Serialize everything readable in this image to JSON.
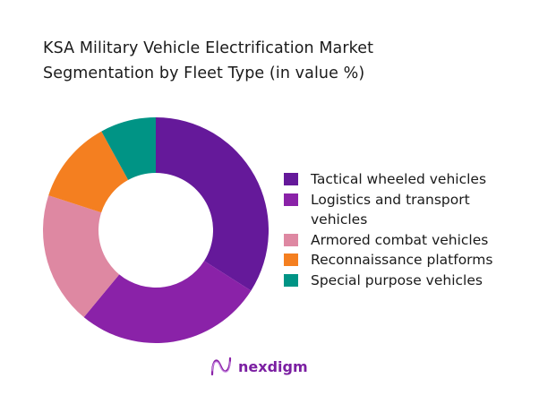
{
  "title": {
    "line1": "KSA Military Vehicle Electrification Market",
    "line2": "Segmentation by Fleet Type (in value %)"
  },
  "chart_data": {
    "type": "pie",
    "subtype": "donut",
    "title": "KSA Military Vehicle Electrification Market Segmentation by Fleet Type (in value %)",
    "categories": [
      "Tactical wheeled vehicles",
      "Logistics and transport vehicles",
      "Armored combat vehicles",
      "Reconnaissance platforms",
      "Special purpose vehicles"
    ],
    "values": [
      34,
      27,
      19,
      12,
      8
    ],
    "colors": [
      "#65199a",
      "#8a22a8",
      "#de88a2",
      "#f47f20",
      "#009485"
    ],
    "legend_position": "right",
    "start_angle": "top, clockwise"
  },
  "legend": {
    "items": [
      {
        "label": "Tactical wheeled vehicles",
        "color": "#65199a"
      },
      {
        "label": "Logistics and transport vehicles",
        "color": "#8a22a8"
      },
      {
        "label": "Armored combat vehicles",
        "color": "#de88a2"
      },
      {
        "label": "Reconnaissance platforms",
        "color": "#f47f20"
      },
      {
        "label": "Special purpose vehicles",
        "color": "#009485"
      }
    ]
  },
  "logo": {
    "text": "nexdigm",
    "icon": "nexdigm-wave-icon"
  }
}
